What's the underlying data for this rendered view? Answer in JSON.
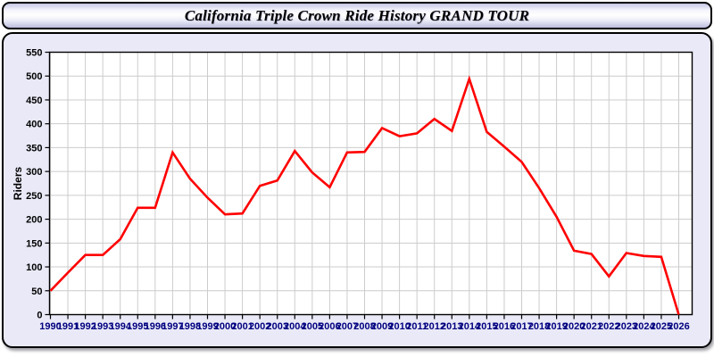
{
  "header": {
    "title": "California Triple Crown Ride History GRAND TOUR"
  },
  "chart_data": {
    "type": "line",
    "title": "California Triple Crown Ride History GRAND TOUR",
    "xlabel": "",
    "ylabel": "Riders",
    "x": [
      1990,
      1991,
      1992,
      1993,
      1994,
      1995,
      1996,
      1997,
      1998,
      1999,
      2000,
      2001,
      2002,
      2003,
      2004,
      2005,
      2006,
      2007,
      2008,
      2009,
      2010,
      2011,
      2012,
      2013,
      2014,
      2015,
      2016,
      2017,
      2018,
      2019,
      2020,
      2021,
      2022,
      2023,
      2024,
      2025,
      2026
    ],
    "values": [
      50,
      88,
      125,
      125,
      158,
      224,
      224,
      340,
      285,
      245,
      210,
      212,
      270,
      281,
      343,
      298,
      267,
      340,
      341,
      391,
      374,
      380,
      410,
      385,
      494,
      383,
      352,
      320,
      265,
      205,
      134,
      127,
      80,
      129,
      123,
      121,
      0
    ],
    "ylim": [
      0,
      550
    ],
    "ytick_step": 50,
    "grid": true,
    "legend_position": "none",
    "colors": {
      "line": "#ff0000",
      "plot_background": "#ffffff",
      "panel_background": "#e9e9f7",
      "gridline": "#cccccc",
      "axis": "#000000",
      "x_tick_labels": "#000080",
      "y_tick_labels": "#000000"
    }
  }
}
